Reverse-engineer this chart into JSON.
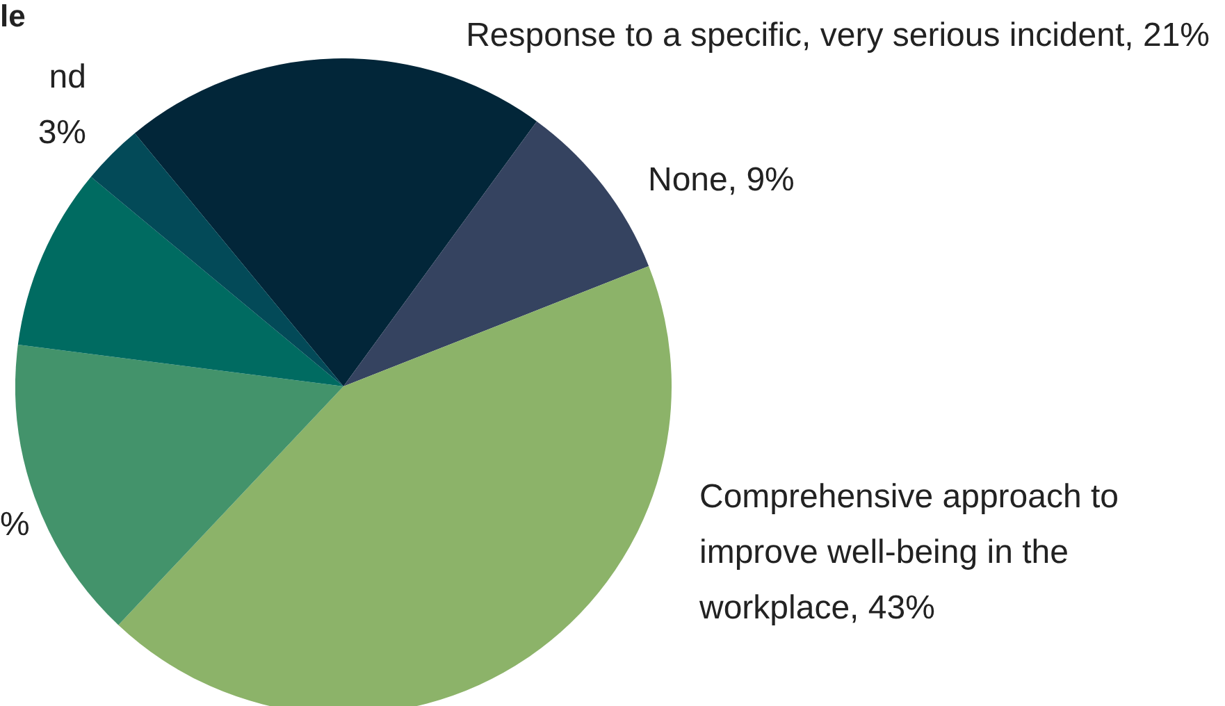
{
  "chart_data": {
    "type": "pie",
    "title": "le",
    "categories": [
      "Response to a specific, very serious incident",
      "None",
      "Comprehensive approach to improve well-being in the workplace",
      null,
      null,
      "nd"
    ],
    "values": [
      21,
      9,
      43,
      15,
      9,
      3
    ],
    "value_labels": [
      "21%",
      "9%",
      "43%",
      "%",
      null,
      "3%"
    ],
    "colors": [
      "#022639",
      "#354360",
      "#8cb369",
      "#43936b",
      "#006b61",
      "#034a58"
    ],
    "legend": false
  }
}
